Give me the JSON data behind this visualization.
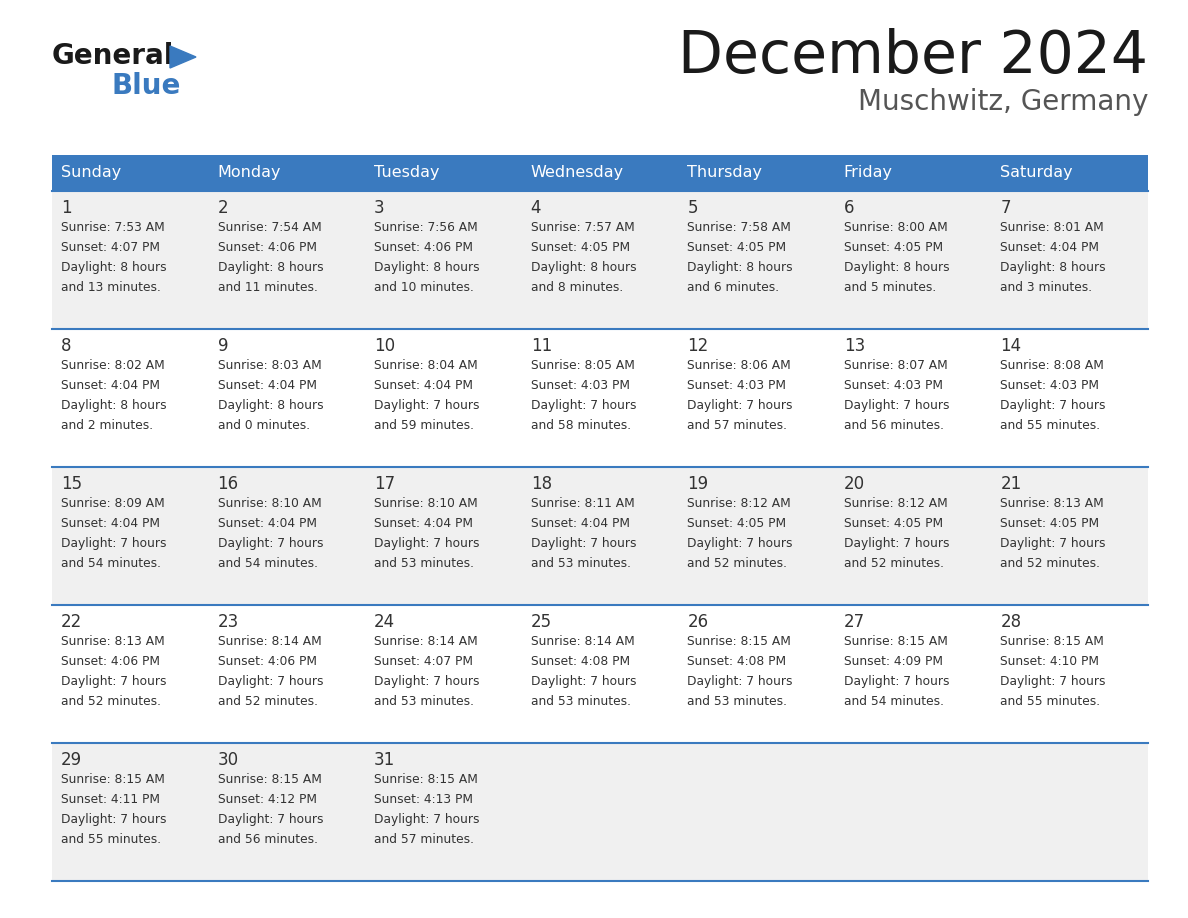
{
  "title": "December 2024",
  "subtitle": "Muschwitz, Germany",
  "header_bg": "#3a7abf",
  "header_text": "#ffffff",
  "day_names": [
    "Sunday",
    "Monday",
    "Tuesday",
    "Wednesday",
    "Thursday",
    "Friday",
    "Saturday"
  ],
  "row_bg_light": "#f0f0f0",
  "row_bg_white": "#ffffff",
  "text_color": "#333333",
  "separator_color": "#3a7abf",
  "calendar_data": [
    [
      {
        "day": 1,
        "sunrise": "7:53 AM",
        "sunset": "4:07 PM",
        "daylight_h": "8 hours",
        "daylight_m": "and 13 minutes."
      },
      {
        "day": 2,
        "sunrise": "7:54 AM",
        "sunset": "4:06 PM",
        "daylight_h": "8 hours",
        "daylight_m": "and 11 minutes."
      },
      {
        "day": 3,
        "sunrise": "7:56 AM",
        "sunset": "4:06 PM",
        "daylight_h": "8 hours",
        "daylight_m": "and 10 minutes."
      },
      {
        "day": 4,
        "sunrise": "7:57 AM",
        "sunset": "4:05 PM",
        "daylight_h": "8 hours",
        "daylight_m": "and 8 minutes."
      },
      {
        "day": 5,
        "sunrise": "7:58 AM",
        "sunset": "4:05 PM",
        "daylight_h": "8 hours",
        "daylight_m": "and 6 minutes."
      },
      {
        "day": 6,
        "sunrise": "8:00 AM",
        "sunset": "4:05 PM",
        "daylight_h": "8 hours",
        "daylight_m": "and 5 minutes."
      },
      {
        "day": 7,
        "sunrise": "8:01 AM",
        "sunset": "4:04 PM",
        "daylight_h": "8 hours",
        "daylight_m": "and 3 minutes."
      }
    ],
    [
      {
        "day": 8,
        "sunrise": "8:02 AM",
        "sunset": "4:04 PM",
        "daylight_h": "8 hours",
        "daylight_m": "and 2 minutes."
      },
      {
        "day": 9,
        "sunrise": "8:03 AM",
        "sunset": "4:04 PM",
        "daylight_h": "8 hours",
        "daylight_m": "and 0 minutes."
      },
      {
        "day": 10,
        "sunrise": "8:04 AM",
        "sunset": "4:04 PM",
        "daylight_h": "7 hours",
        "daylight_m": "and 59 minutes."
      },
      {
        "day": 11,
        "sunrise": "8:05 AM",
        "sunset": "4:03 PM",
        "daylight_h": "7 hours",
        "daylight_m": "and 58 minutes."
      },
      {
        "day": 12,
        "sunrise": "8:06 AM",
        "sunset": "4:03 PM",
        "daylight_h": "7 hours",
        "daylight_m": "and 57 minutes."
      },
      {
        "day": 13,
        "sunrise": "8:07 AM",
        "sunset": "4:03 PM",
        "daylight_h": "7 hours",
        "daylight_m": "and 56 minutes."
      },
      {
        "day": 14,
        "sunrise": "8:08 AM",
        "sunset": "4:03 PM",
        "daylight_h": "7 hours",
        "daylight_m": "and 55 minutes."
      }
    ],
    [
      {
        "day": 15,
        "sunrise": "8:09 AM",
        "sunset": "4:04 PM",
        "daylight_h": "7 hours",
        "daylight_m": "and 54 minutes."
      },
      {
        "day": 16,
        "sunrise": "8:10 AM",
        "sunset": "4:04 PM",
        "daylight_h": "7 hours",
        "daylight_m": "and 54 minutes."
      },
      {
        "day": 17,
        "sunrise": "8:10 AM",
        "sunset": "4:04 PM",
        "daylight_h": "7 hours",
        "daylight_m": "and 53 minutes."
      },
      {
        "day": 18,
        "sunrise": "8:11 AM",
        "sunset": "4:04 PM",
        "daylight_h": "7 hours",
        "daylight_m": "and 53 minutes."
      },
      {
        "day": 19,
        "sunrise": "8:12 AM",
        "sunset": "4:05 PM",
        "daylight_h": "7 hours",
        "daylight_m": "and 52 minutes."
      },
      {
        "day": 20,
        "sunrise": "8:12 AM",
        "sunset": "4:05 PM",
        "daylight_h": "7 hours",
        "daylight_m": "and 52 minutes."
      },
      {
        "day": 21,
        "sunrise": "8:13 AM",
        "sunset": "4:05 PM",
        "daylight_h": "7 hours",
        "daylight_m": "and 52 minutes."
      }
    ],
    [
      {
        "day": 22,
        "sunrise": "8:13 AM",
        "sunset": "4:06 PM",
        "daylight_h": "7 hours",
        "daylight_m": "and 52 minutes."
      },
      {
        "day": 23,
        "sunrise": "8:14 AM",
        "sunset": "4:06 PM",
        "daylight_h": "7 hours",
        "daylight_m": "and 52 minutes."
      },
      {
        "day": 24,
        "sunrise": "8:14 AM",
        "sunset": "4:07 PM",
        "daylight_h": "7 hours",
        "daylight_m": "and 53 minutes."
      },
      {
        "day": 25,
        "sunrise": "8:14 AM",
        "sunset": "4:08 PM",
        "daylight_h": "7 hours",
        "daylight_m": "and 53 minutes."
      },
      {
        "day": 26,
        "sunrise": "8:15 AM",
        "sunset": "4:08 PM",
        "daylight_h": "7 hours",
        "daylight_m": "and 53 minutes."
      },
      {
        "day": 27,
        "sunrise": "8:15 AM",
        "sunset": "4:09 PM",
        "daylight_h": "7 hours",
        "daylight_m": "and 54 minutes."
      },
      {
        "day": 28,
        "sunrise": "8:15 AM",
        "sunset": "4:10 PM",
        "daylight_h": "7 hours",
        "daylight_m": "and 55 minutes."
      }
    ],
    [
      {
        "day": 29,
        "sunrise": "8:15 AM",
        "sunset": "4:11 PM",
        "daylight_h": "7 hours",
        "daylight_m": "and 55 minutes."
      },
      {
        "day": 30,
        "sunrise": "8:15 AM",
        "sunset": "4:12 PM",
        "daylight_h": "7 hours",
        "daylight_m": "and 56 minutes."
      },
      {
        "day": 31,
        "sunrise": "8:15 AM",
        "sunset": "4:13 PM",
        "daylight_h": "7 hours",
        "daylight_m": "and 57 minutes."
      },
      null,
      null,
      null,
      null
    ]
  ]
}
